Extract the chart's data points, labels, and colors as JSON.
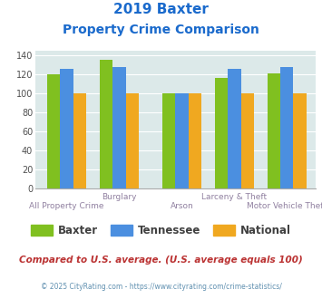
{
  "title_line1": "2019 Baxter",
  "title_line2": "Property Crime Comparison",
  "categories": [
    "All Property Crime",
    "Burglary",
    "Arson",
    "Larceny & Theft",
    "Motor Vehicle Theft"
  ],
  "baxter": [
    120,
    136,
    100,
    116,
    121
  ],
  "tennessee": [
    126,
    128,
    100,
    126,
    128
  ],
  "national": [
    100,
    100,
    100,
    100,
    100
  ],
  "color_baxter": "#80c020",
  "color_tennessee": "#4b8fe0",
  "color_national": "#f0a820",
  "bg_color": "#dce9e9",
  "ylim": [
    0,
    145
  ],
  "yticks": [
    0,
    20,
    40,
    60,
    80,
    100,
    120,
    140
  ],
  "legend_labels": [
    "Baxter",
    "Tennessee",
    "National"
  ],
  "footnote1": "Compared to U.S. average. (U.S. average equals 100)",
  "footnote2": "© 2025 CityRating.com - https://www.cityrating.com/crime-statistics/",
  "title_color": "#1a6acc",
  "axis_label_color": "#9080a0",
  "footnote1_color": "#bb3333",
  "footnote2_color": "#6090b0",
  "group_positions": [
    0.5,
    1.5,
    2.7,
    3.7,
    4.7
  ],
  "bar_width": 0.25
}
